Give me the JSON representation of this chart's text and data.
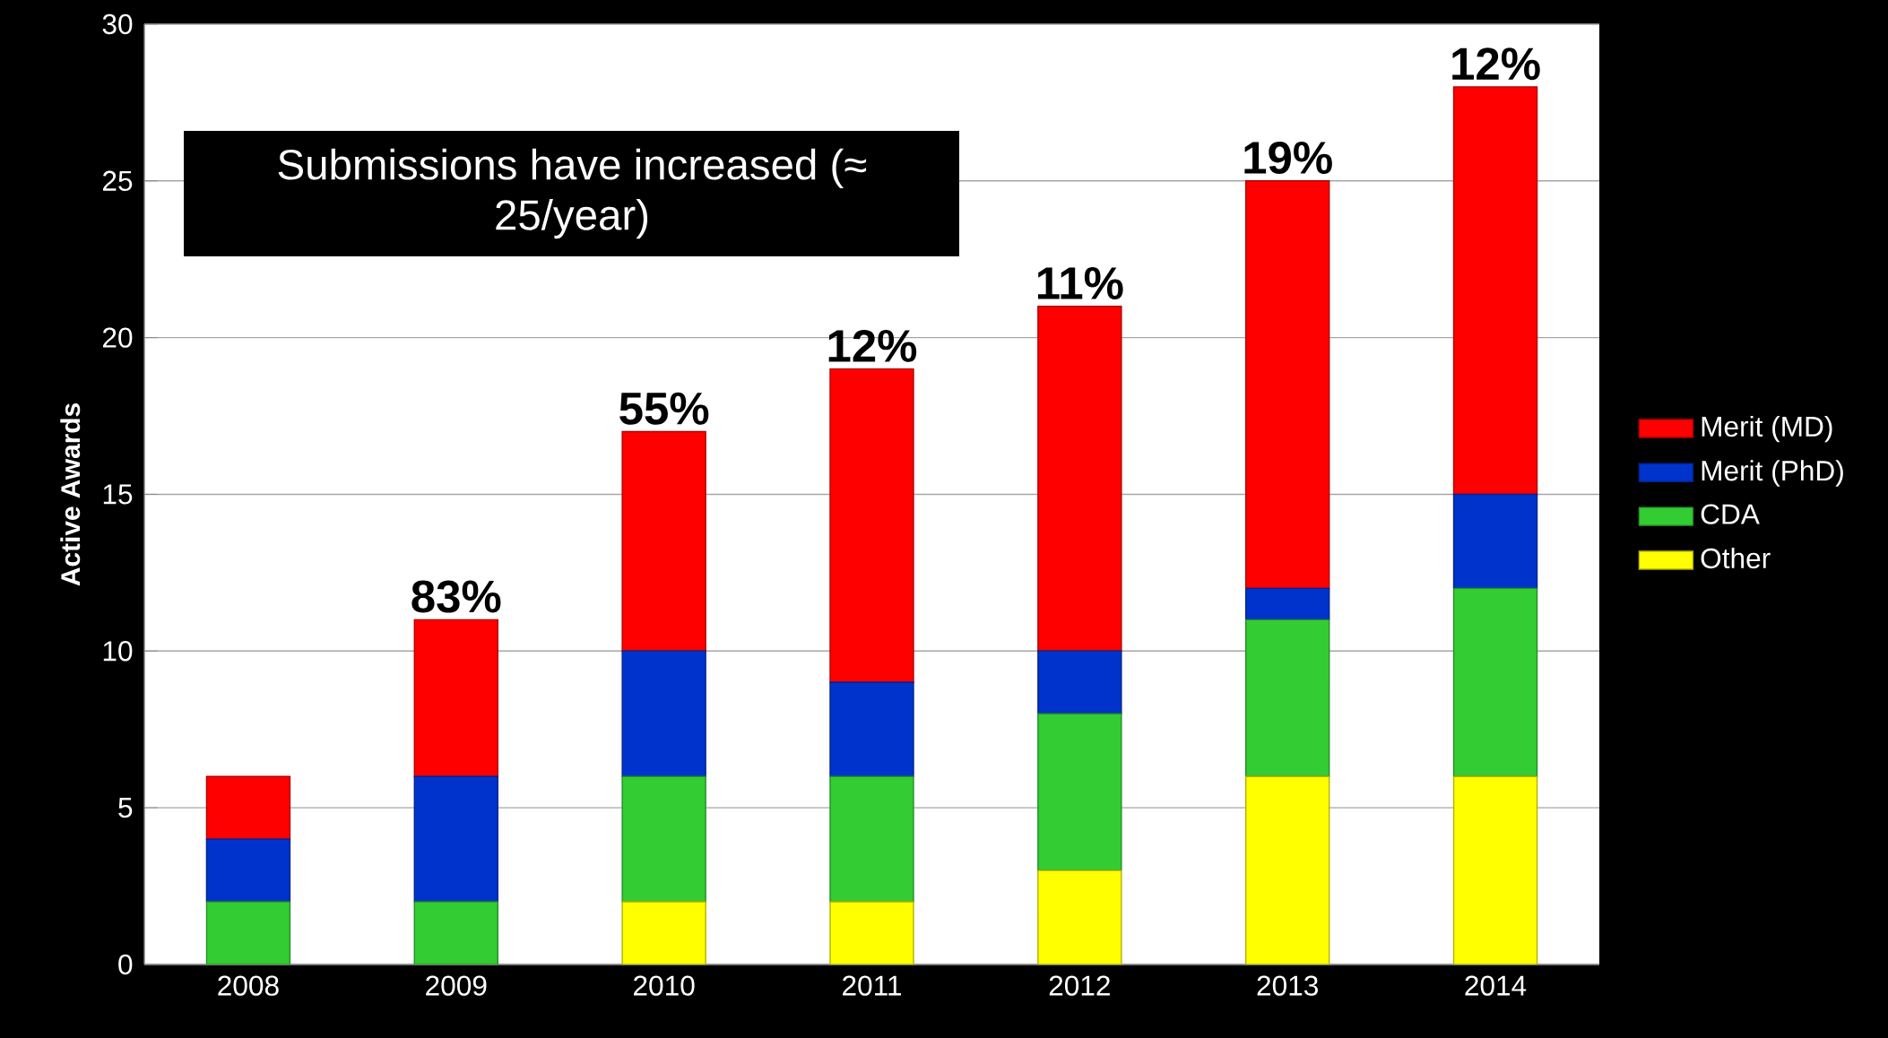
{
  "chart_data": {
    "type": "bar",
    "stacked": true,
    "ylabel": "Active Awards",
    "categories": [
      "2008",
      "2009",
      "2010",
      "2011",
      "2012",
      "2013",
      "2014"
    ],
    "series": [
      {
        "name": "Other",
        "color": "#ffff00",
        "values": [
          0,
          0,
          2,
          2,
          3,
          6,
          6
        ]
      },
      {
        "name": "CDA",
        "color": "#33cc33",
        "values": [
          2,
          2,
          4,
          4,
          5,
          5,
          6
        ]
      },
      {
        "name": "Merit (PhD)",
        "color": "#0033cc",
        "values": [
          2,
          4,
          4,
          3,
          2,
          1,
          3
        ]
      },
      {
        "name": "Merit (MD)",
        "color": "#ff0000",
        "values": [
          2,
          5,
          7,
          10,
          11,
          13,
          13
        ]
      }
    ],
    "annotations": [
      "Submissions have increased (≈ 25/year)",
      {
        "text": "83%",
        "x": "2009",
        "y": 11
      },
      {
        "text": "55%",
        "x": "2010",
        "y": 17
      },
      {
        "text": "12%",
        "x": "2011",
        "y": 19
      },
      {
        "text": "11%",
        "x": "2012",
        "y": 21
      },
      {
        "text": "19%",
        "x": "2013",
        "y": 25
      },
      {
        "text": "12%",
        "x": "2014",
        "y": 28
      }
    ],
    "ylim": [
      0,
      30
    ],
    "yticks": [
      0,
      5,
      10,
      15,
      20,
      25,
      30
    ],
    "grid": "y",
    "legend": "right"
  }
}
